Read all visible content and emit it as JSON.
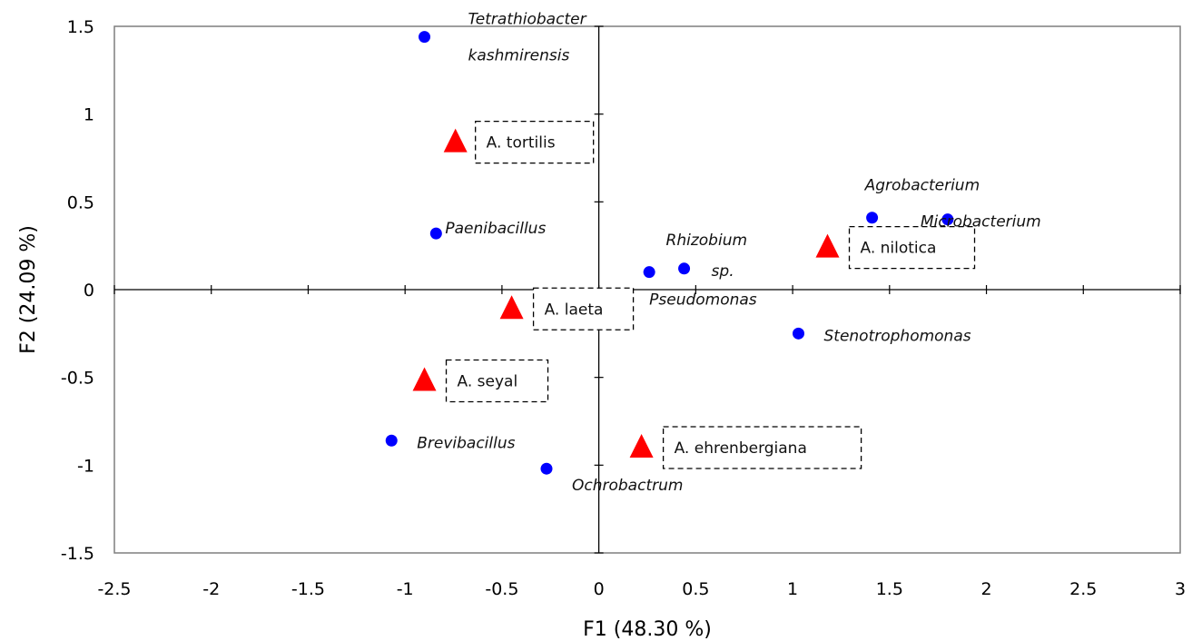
{
  "chart_data": {
    "type": "scatter",
    "xlabel": "F1 (48.30 %)",
    "ylabel": "F2 (24.09 %)",
    "xlim": [
      -2.5,
      3
    ],
    "ylim": [
      -1.5,
      1.5
    ],
    "xticks": [
      -2.5,
      -2,
      -1.5,
      -1,
      -0.5,
      0,
      0.5,
      1,
      1.5,
      2,
      2.5,
      3
    ],
    "yticks": [
      -1.5,
      -1,
      -0.5,
      0,
      0.5,
      1,
      1.5
    ],
    "xtick_labels": [
      "-2.5",
      "-2",
      "-1.5",
      "-1",
      "-0.5",
      "0",
      "0.5",
      "1",
      "1.5",
      "2",
      "2.5",
      "3"
    ],
    "ytick_labels": [
      "-1.5",
      "-1",
      "-0.5",
      "0",
      "0.5",
      "1",
      "1.5"
    ],
    "grid": false,
    "series": [
      {
        "marker": "circle",
        "color": "#0000ff",
        "points": [
          {
            "x": -0.9,
            "y": 1.44,
            "label": [
              "Tetrathiobacter",
              "kashmirensis"
            ]
          },
          {
            "x": -0.84,
            "y": 0.32,
            "label": [
              "Paenibacillus"
            ]
          },
          {
            "x": 0.26,
            "y": 0.1,
            "label": [
              "Pseudomonas"
            ]
          },
          {
            "x": 0.44,
            "y": 0.12,
            "label": [
              "Rhizobium",
              "sp."
            ]
          },
          {
            "x": 1.41,
            "y": 0.41,
            "label": [
              "Agrobacterium"
            ]
          },
          {
            "x": 1.8,
            "y": 0.4,
            "label": [
              "Microbacterium"
            ]
          },
          {
            "x": 1.03,
            "y": -0.25,
            "label": [
              "Stenotrophomonas"
            ]
          },
          {
            "x": -1.07,
            "y": -0.86,
            "label": [
              "Brevibacillus"
            ]
          },
          {
            "x": -0.27,
            "y": -1.02,
            "label": [
              "Ochrobactrum"
            ]
          }
        ]
      },
      {
        "marker": "triangle",
        "color": "#ff0000",
        "points": [
          {
            "x": -0.74,
            "y": 0.84,
            "label": "A. tortilis"
          },
          {
            "x": 1.18,
            "y": 0.24,
            "label": "A. nilotica"
          },
          {
            "x": -0.45,
            "y": -0.11,
            "label": "A. laeta"
          },
          {
            "x": -0.9,
            "y": -0.52,
            "label": "A. seyal"
          },
          {
            "x": 0.22,
            "y": -0.9,
            "label": "A. ehrenbergiana"
          }
        ]
      }
    ]
  }
}
